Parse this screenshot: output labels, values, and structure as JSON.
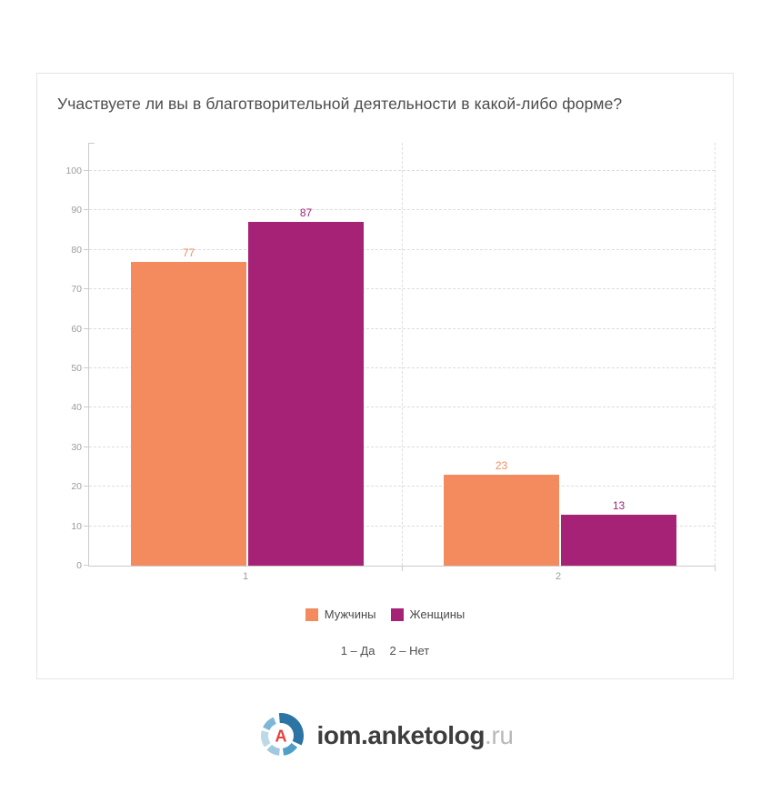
{
  "chart_data": {
    "type": "bar",
    "title": "Участвуете ли вы в благотворительной деятельности в какой-либо форме?",
    "categories": [
      "1",
      "2"
    ],
    "series": [
      {
        "name": "Мужчины",
        "color": "#F48B5F",
        "values": [
          77,
          23
        ]
      },
      {
        "name": "Женщины",
        "color": "#A52277",
        "values": [
          87,
          13
        ]
      }
    ],
    "yticks": [
      0,
      10,
      20,
      30,
      40,
      50,
      60,
      70,
      80,
      90,
      100
    ],
    "ylim": [
      0,
      107
    ],
    "grid": "dashed",
    "legend_position": "bottom",
    "annotations": [
      "1 – Да",
      "2 – Нет"
    ]
  },
  "footer": {
    "brand": "iom.anketolog",
    "tld": ".ru",
    "logo_letter": "A",
    "logo_colors": {
      "arc_dark": "#2B74A4",
      "arc_mid": "#4F9FC7",
      "arc_light": "#9EC9DF",
      "arc_pale": "#BCD9E8",
      "arc_midlight": "#7FB6D5",
      "letter": "#E2403D"
    }
  }
}
